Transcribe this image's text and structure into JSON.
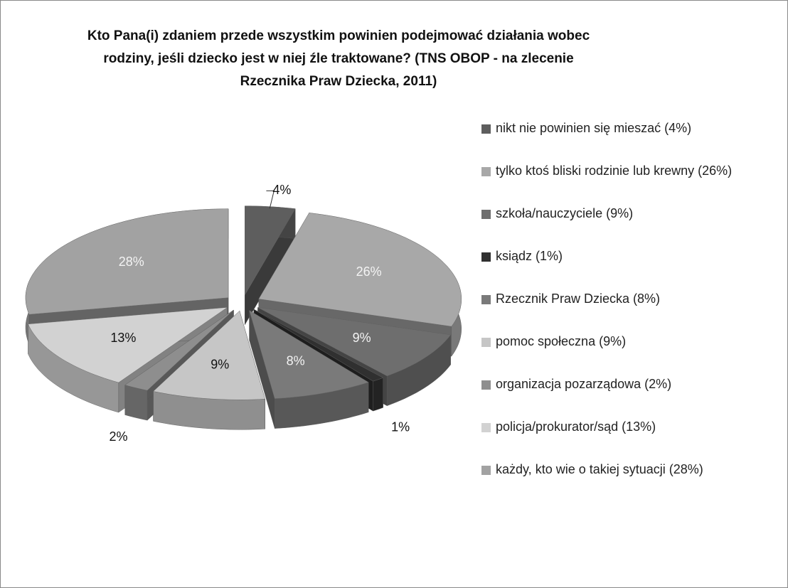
{
  "chart_data": {
    "type": "pie",
    "title": "Kto Pana(i) zdaniem przede wszystkim powinien podejmować działania wobec rodziny, jeśli dziecko jest w niej źle traktowane? (TNS OBOP - na zlecenie Rzecznika Praw Dziecka, 2011)",
    "categories": [
      "nikt nie powinien się mieszać (4%)",
      "tylko ktoś bliski rodzinie lub krewny (26%)",
      "szkoła/nauczyciele (9%)",
      "ksiądz (1%)",
      "Rzecznik Praw Dziecka (8%)",
      "pomoc społeczna (9%)",
      "organizacja pozarządowa (2%)",
      "policja/prokurator/sąd (13%)",
      "każdy, kto wie o takiej sytuacji (28%)"
    ],
    "values": [
      4,
      26,
      9,
      1,
      8,
      9,
      2,
      13,
      28
    ],
    "value_labels": [
      "4%",
      "26%",
      "9%",
      "1%",
      "8%",
      "9%",
      "2%",
      "13%",
      "28%"
    ],
    "colors": [
      "#5e5e5e",
      "#a8a8a8",
      "#6e6e6e",
      "#303030",
      "#7a7a7a",
      "#c6c6c6",
      "#8e8e8e",
      "#d2d2d2",
      "#a2a2a2"
    ],
    "legend": "right"
  }
}
